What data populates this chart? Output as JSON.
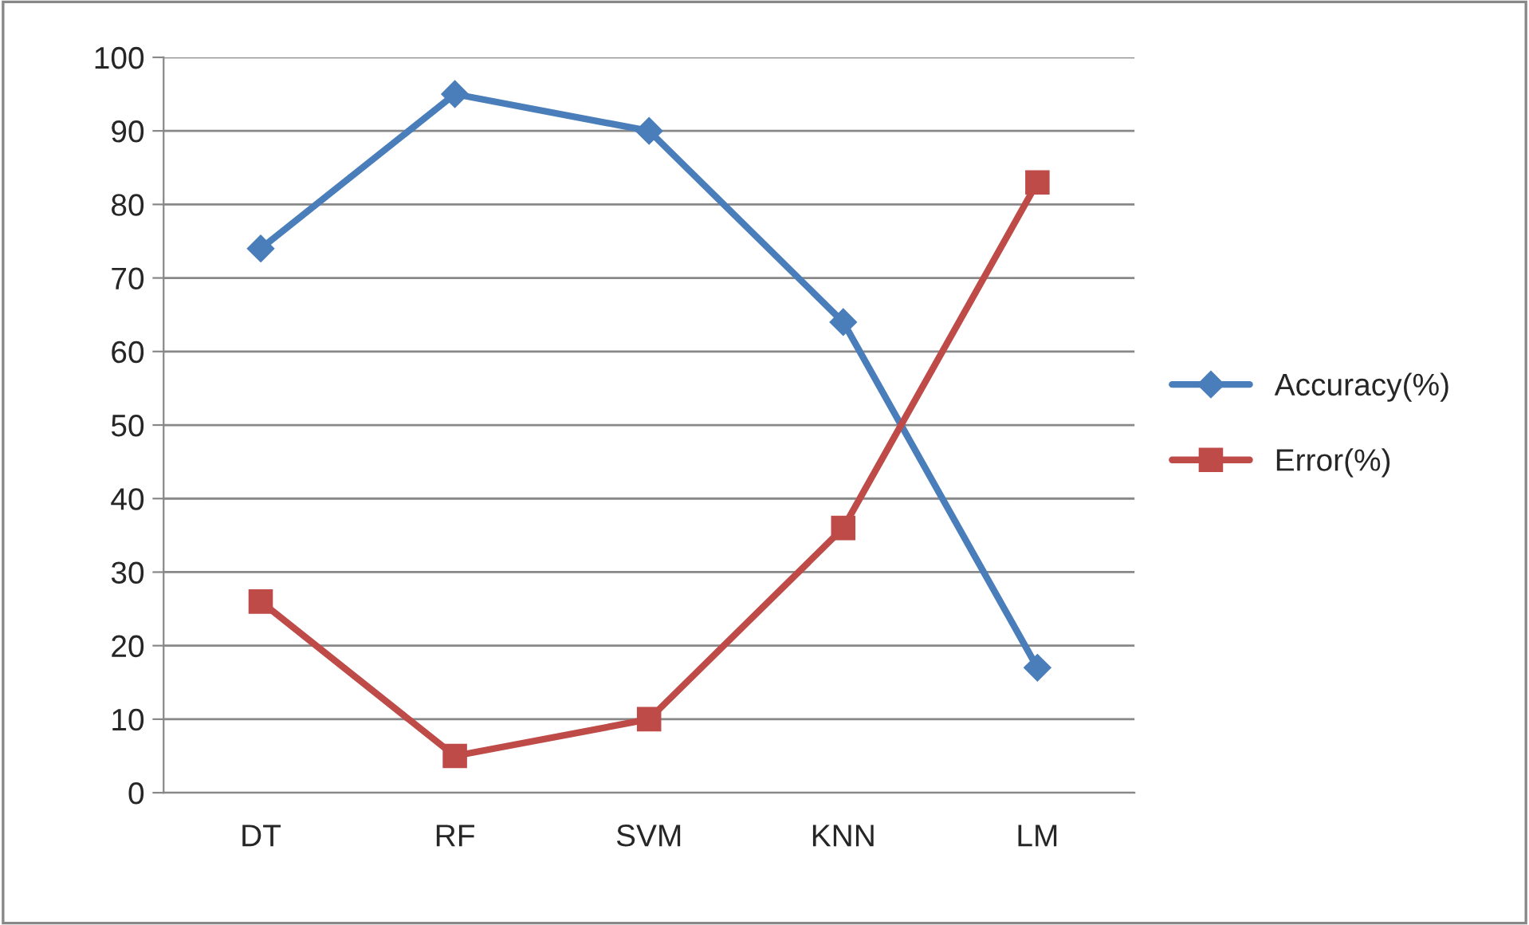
{
  "chart_data": {
    "type": "line",
    "categories": [
      "DT",
      "RF",
      "SVM",
      "KNN",
      "LM"
    ],
    "series": [
      {
        "name": "Accuracy(%)",
        "color": "#4a7ebb",
        "marker": "diamond",
        "values": [
          74,
          95,
          90,
          64,
          17
        ]
      },
      {
        "name": "Error(%)",
        "color": "#be4b48",
        "marker": "square",
        "values": [
          26,
          5,
          10,
          36,
          83
        ]
      }
    ],
    "ylim": [
      0,
      100
    ],
    "yticks": [
      0,
      10,
      20,
      30,
      40,
      50,
      60,
      70,
      80,
      90,
      100
    ],
    "grid": "y",
    "legend": "right",
    "line_style": "solid"
  }
}
